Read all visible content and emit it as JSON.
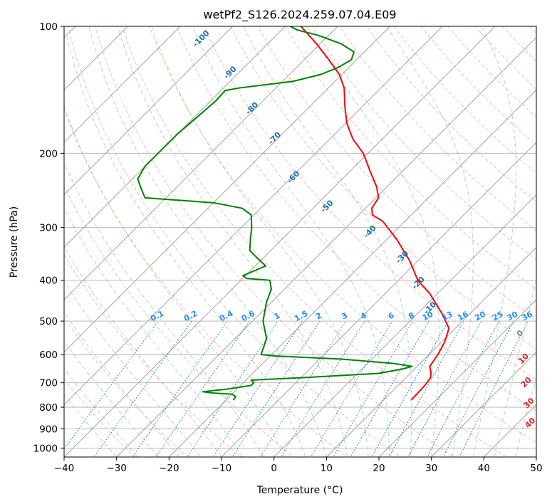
{
  "chart_data": {
    "type": "line",
    "chart_kind": "skew-t log-p",
    "title": "wetPf2_S126.2024.259.07.04.E09",
    "xlabel": "Temperature (°C)",
    "ylabel": "Pressure (hPa)",
    "xlim": [
      -40,
      50
    ],
    "ylim": [
      1050,
      100
    ],
    "y_scale": "log",
    "x_ticks": [
      -40,
      -30,
      -20,
      -10,
      0,
      10,
      20,
      30,
      40,
      50
    ],
    "x_tick_labels": [
      "−40",
      "−30",
      "−20",
      "−10",
      "0",
      "10",
      "20",
      "30",
      "40",
      "50"
    ],
    "y_ticks": [
      100,
      200,
      300,
      400,
      500,
      600,
      700,
      800,
      900,
      1000
    ],
    "y_tick_labels": [
      "100",
      "200",
      "300",
      "400",
      "500",
      "600",
      "700",
      "800",
      "900",
      "1000"
    ],
    "grid": true,
    "colors": {
      "temperature": "#ff0000",
      "dewpoint": "#008000",
      "isotherm": "#808080",
      "dry_adiabat": "#fa8072",
      "moist_adiabat": "#7fbf7f",
      "mixing_ratio": "#1e8ce6",
      "pressure_grid": "#b0b0b0",
      "dry_adiabat_label": "#1f6fb4",
      "mixing_ratio_label": "#1e90ff",
      "moist_adiabat_label": "#d62728",
      "moist_zero_label": "#808080"
    },
    "series": [
      {
        "variable": "temperature",
        "color": "#ff0000",
        "points": [
          {
            "p": 770,
            "t": 15.3
          },
          {
            "p": 710,
            "t": 15.1
          },
          {
            "p": 680,
            "t": 14.7
          },
          {
            "p": 660,
            "t": 13.7
          },
          {
            "p": 640,
            "t": 12.4
          },
          {
            "p": 600,
            "t": 11.7
          },
          {
            "p": 560,
            "t": 10.6
          },
          {
            "p": 520,
            "t": 8.8
          },
          {
            "p": 480,
            "t": 4.7
          },
          {
            "p": 430,
            "t": -1.5
          },
          {
            "p": 400,
            "t": -6.3
          },
          {
            "p": 360,
            "t": -11.5
          },
          {
            "p": 320,
            "t": -18.1
          },
          {
            "p": 290,
            "t": -24.2
          },
          {
            "p": 280,
            "t": -27.4
          },
          {
            "p": 270,
            "t": -28.8
          },
          {
            "p": 255,
            "t": -29.5
          },
          {
            "p": 240,
            "t": -32.0
          },
          {
            "p": 220,
            "t": -36.3
          },
          {
            "p": 200,
            "t": -40.9
          },
          {
            "p": 185,
            "t": -45.6
          },
          {
            "p": 170,
            "t": -49.7
          },
          {
            "p": 155,
            "t": -53.3
          },
          {
            "p": 140,
            "t": -57.0
          },
          {
            "p": 130,
            "t": -60.5
          },
          {
            "p": 120,
            "t": -65.3
          },
          {
            "p": 110,
            "t": -70.7
          },
          {
            "p": 100,
            "t": -77.0
          }
        ]
      },
      {
        "variable": "dewpoint",
        "color": "#008000",
        "points": [
          {
            "p": 770,
            "t": -18.6
          },
          {
            "p": 755,
            "t": -18.8
          },
          {
            "p": 745,
            "t": -20.0
          },
          {
            "p": 740,
            "t": -24.0
          },
          {
            "p": 735,
            "t": -26.0
          },
          {
            "p": 725,
            "t": -22.0
          },
          {
            "p": 710,
            "t": -18.0
          },
          {
            "p": 700,
            "t": -18.0
          },
          {
            "p": 690,
            "t": -19.0
          },
          {
            "p": 680,
            "t": -9.0
          },
          {
            "p": 665,
            "t": 4.0
          },
          {
            "p": 650,
            "t": 7.6
          },
          {
            "p": 640,
            "t": 9.0
          },
          {
            "p": 630,
            "t": 5.0
          },
          {
            "p": 615,
            "t": -6.0
          },
          {
            "p": 605,
            "t": -19.0
          },
          {
            "p": 600,
            "t": -22.0
          },
          {
            "p": 550,
            "t": -24.0
          },
          {
            "p": 500,
            "t": -28.0
          },
          {
            "p": 450,
            "t": -31.0
          },
          {
            "p": 420,
            "t": -32.5
          },
          {
            "p": 400,
            "t": -34.5
          },
          {
            "p": 396,
            "t": -39.3
          },
          {
            "p": 390,
            "t": -40.5
          },
          {
            "p": 370,
            "t": -38.0
          },
          {
            "p": 355,
            "t": -41.0
          },
          {
            "p": 340,
            "t": -44.0
          },
          {
            "p": 320,
            "t": -46.0
          },
          {
            "p": 300,
            "t": -48.0
          },
          {
            "p": 280,
            "t": -50.5
          },
          {
            "p": 270,
            "t": -53.5
          },
          {
            "p": 262,
            "t": -60.0
          },
          {
            "p": 258,
            "t": -68.0
          },
          {
            "p": 255,
            "t": -74.0
          },
          {
            "p": 250,
            "t": -75.0
          },
          {
            "p": 240,
            "t": -77.0
          },
          {
            "p": 230,
            "t": -79.0
          },
          {
            "p": 215,
            "t": -80.0
          },
          {
            "p": 200,
            "t": -80.0
          },
          {
            "p": 180,
            "t": -80.0
          },
          {
            "p": 165,
            "t": -79.5
          },
          {
            "p": 150,
            "t": -79.0
          },
          {
            "p": 142,
            "t": -79.2
          },
          {
            "p": 140,
            "t": -77.0
          },
          {
            "p": 135,
            "t": -68.0
          },
          {
            "p": 130,
            "t": -64.0
          },
          {
            "p": 125,
            "t": -62.0
          },
          {
            "p": 120,
            "t": -61.0
          },
          {
            "p": 115,
            "t": -62.0
          },
          {
            "p": 110,
            "t": -66.0
          },
          {
            "p": 105,
            "t": -72.0
          },
          {
            "p": 102,
            "t": -77.0
          },
          {
            "p": 100,
            "t": -79.0
          }
        ]
      }
    ],
    "dry_adiabat_labels": [
      {
        "text": "-100",
        "p": 108,
        "t": -93
      },
      {
        "text": "-90",
        "p": 130,
        "t": -81
      },
      {
        "text": "-80",
        "p": 158,
        "t": -70
      },
      {
        "text": "-70",
        "p": 186,
        "t": -60
      },
      {
        "text": "-60",
        "p": 230,
        "t": -49
      },
      {
        "text": "-50",
        "p": 270,
        "t": -37
      },
      {
        "text": "-40",
        "p": 310,
        "t": -24
      },
      {
        "text": "-30",
        "p": 356,
        "t": -13
      },
      {
        "text": "-20",
        "p": 410,
        "t": -5
      },
      {
        "text": "-10",
        "p": 470,
        "t": 2
      }
    ],
    "mixing_ratio_labels": [
      "0.1",
      "0.2",
      "0.4",
      "0.6",
      "1",
      "1.5",
      "2",
      "3",
      "4",
      "6",
      "8",
      "10",
      "13",
      "16",
      "20",
      "25",
      "30",
      "36"
    ],
    "mixing_ratio_values": [
      0.1,
      0.2,
      0.4,
      0.6,
      1,
      1.5,
      2,
      3,
      4,
      6,
      8,
      10,
      13,
      16,
      20,
      25,
      30,
      36
    ],
    "moist_adiabat_labels": [
      {
        "text": "0",
        "p": 540,
        "t": 24
      },
      {
        "text": "10",
        "p": 620,
        "t": 29.5
      },
      {
        "text": "20",
        "p": 705,
        "t": 34.5
      },
      {
        "text": "30",
        "p": 790,
        "t": 39
      },
      {
        "text": "40",
        "p": 880,
        "t": 43
      }
    ]
  }
}
